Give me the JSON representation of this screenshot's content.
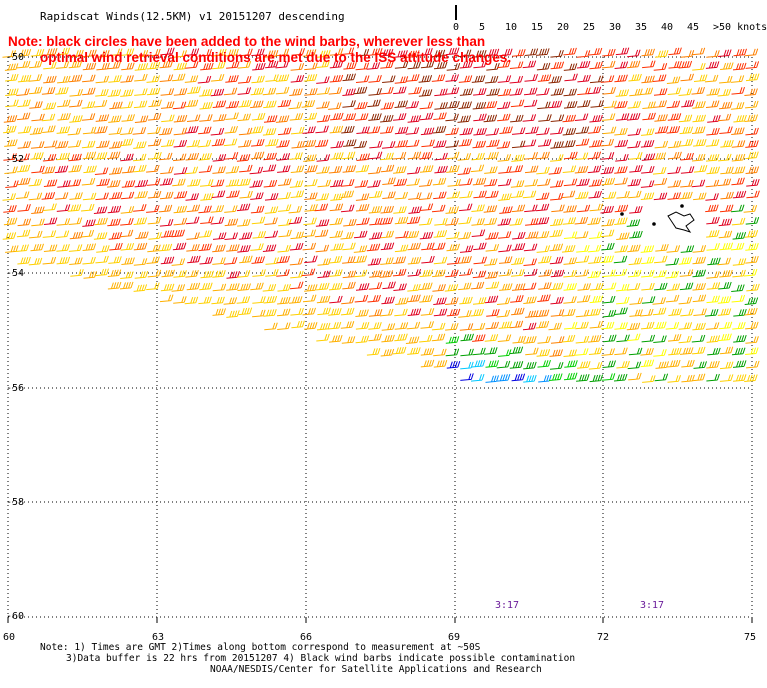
{
  "title": "Rapidscat Winds(12.5KM) v1 20151207 descending",
  "note": {
    "line1": "Note: black circles have been added to the wind barbs, wherever less than",
    "line2": "optimal wind retrieval conditions are met due to the ISS attitude changes."
  },
  "legend": {
    "colors": [
      "#555555",
      "#8c8c8c",
      "#00c8ff",
      "#0090ff",
      "#0000e0",
      "#00a000",
      "#00d000",
      "#ffff00",
      "#ffd000",
      "#ffb000",
      "#ff8000",
      "#ff3000",
      "#e00020",
      "#8b2500",
      "#8b4513",
      "#e000e0",
      "#a000ff",
      "#5000a0"
    ],
    "labels": [
      "0",
      "5",
      "10",
      "15",
      "20",
      "25",
      "30",
      "35",
      "40",
      "45",
      ">50 knots"
    ]
  },
  "axes": {
    "lat_labels": [
      "-50",
      "-52",
      "-54",
      "-56",
      "-58",
      "-60"
    ],
    "lon_labels": [
      "60",
      "63",
      "66",
      "69",
      "72",
      "75"
    ]
  },
  "time_labels": [
    "3:17",
    "3:17"
  ],
  "footer": {
    "line1": "Note: 1) Times are GMT 2)Times along bottom correspond to measurement at ~50S",
    "line2": "3)Data buffer is 22 hrs from 20151207 4) Black wind barbs indicate possible contamination",
    "line3": "NOAA/NESDIS/Center for Satellite Applications and Research"
  }
}
